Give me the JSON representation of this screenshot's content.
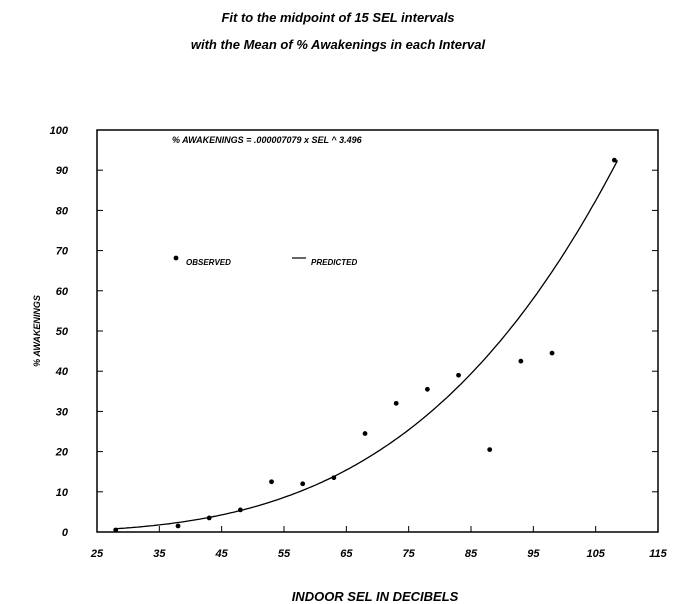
{
  "chart_data": {
    "type": "scatter",
    "title_lines": [
      "Fit to the midpoint of 15 SEL intervals",
      "with the Mean of % Awakenings in each Interval"
    ],
    "xlabel": "INDOOR SEL IN DECIBELS",
    "ylabel": "% AWAKENINGS",
    "equation": "% AWAKENINGS = .000007079 x SEL ^ 3.496",
    "xlim": [
      25,
      115
    ],
    "ylim": [
      0,
      100
    ],
    "x_ticks": [
      25,
      35,
      45,
      55,
      65,
      75,
      85,
      95,
      105,
      115
    ],
    "y_ticks": [
      0,
      10,
      20,
      30,
      40,
      50,
      60,
      70,
      80,
      90,
      100
    ],
    "legend": {
      "observed": "OBSERVED",
      "predicted": "PREDICTED"
    },
    "grid": false,
    "series": [
      {
        "name": "OBSERVED",
        "kind": "points",
        "x": [
          28,
          38,
          43,
          48,
          53,
          58,
          63,
          68,
          73,
          78,
          83,
          88,
          93,
          98,
          108
        ],
        "y": [
          0.5,
          1.5,
          3.5,
          5.5,
          12.5,
          12,
          13.5,
          24.5,
          32,
          35.5,
          39,
          20.5,
          42.5,
          44.5,
          92.5
        ]
      },
      {
        "name": "PREDICTED",
        "kind": "curve",
        "coefficient": 7.079e-06,
        "exponent": 3.496,
        "x_range": [
          28,
          108.5
        ]
      }
    ]
  }
}
